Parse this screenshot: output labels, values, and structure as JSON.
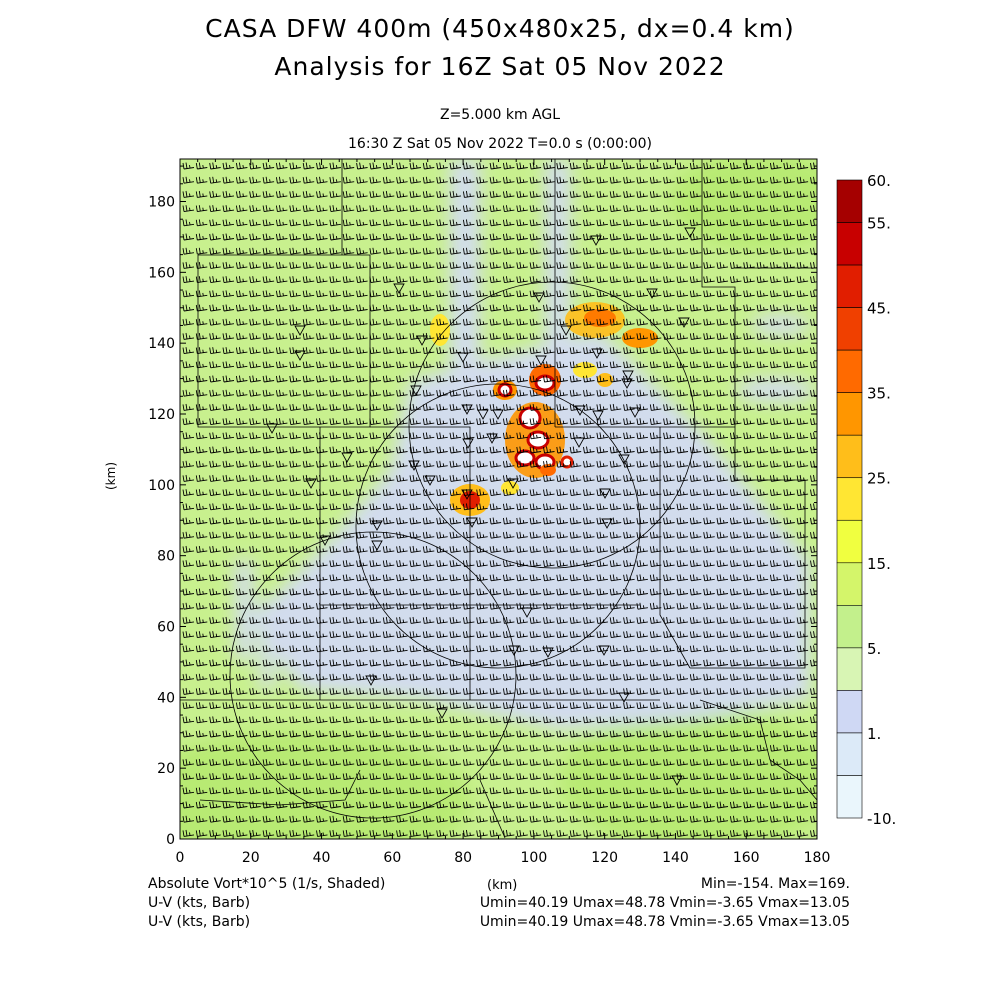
{
  "header": {
    "title_line1": "CASA DFW 400m (450x480x25, dx=0.4 km)",
    "title_line2": "Analysis for 16Z Sat 05 Nov 2022",
    "level": "Z=5.000 km AGL",
    "time": "16:30 Z Sat 05 Nov 2022    T=0.0 s (0:00:00)"
  },
  "axes": {
    "x_ticks": [
      "0",
      "20",
      "40",
      "60",
      "80",
      "100",
      "120",
      "140",
      "160",
      "180"
    ],
    "y_ticks": [
      "0",
      "20",
      "40",
      "60",
      "80",
      "100",
      "120",
      "140",
      "160",
      "180"
    ],
    "x_range": [
      0,
      180
    ],
    "y_range": [
      0,
      192
    ],
    "xlabel": "(km)",
    "ylabel": "(km)"
  },
  "colorbar": {
    "labels": [
      "60.",
      "55.",
      "45.",
      "35.",
      "25.",
      "15.",
      "5.",
      "1.",
      "-10."
    ],
    "colors": [
      "#a50000",
      "#c80000",
      "#e11e00",
      "#f04000",
      "#ff6a00",
      "#ff9600",
      "#ffbe1a",
      "#ffe633",
      "#f0ff40",
      "#d4f56a",
      "#c3f08c",
      "#d8f5b4",
      "#cfd8f4",
      "#dceaf8",
      "#eaf6fc"
    ]
  },
  "footer": {
    "field_label": "Absolute Vort*10^5 (1/s, Shaded)",
    "x_unit": "(km)",
    "minmax": "Min=-154. Max=169.",
    "wind_label1": "U-V (kts, Barb)",
    "wind_label2": "U-V (kts, Barb)",
    "wind_stats1": "Umin=40.19 Umax=48.78 Vmin=-3.65 Vmax=13.05",
    "wind_stats2": "Umin=40.19 Umax=48.78 Vmin=-3.65 Vmax=13.05"
  },
  "map_symbols": {
    "station_icon": "triangle-down-icon",
    "range_ring_icon": "circle-outline-icon",
    "wind_barb_icon": "wind-barb-icon"
  }
}
